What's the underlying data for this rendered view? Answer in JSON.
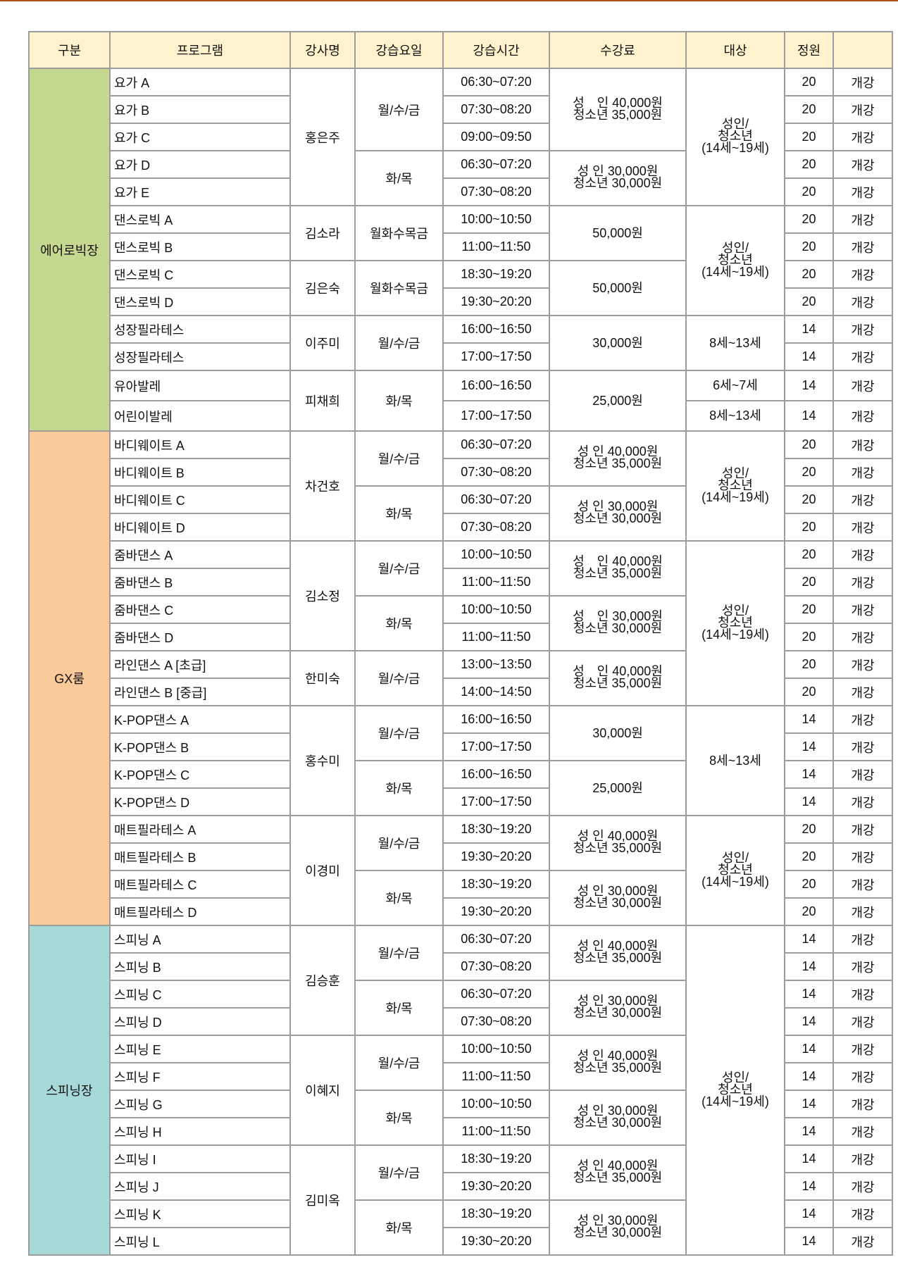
{
  "colors": {
    "header": "#fff2cc",
    "aerobic": "#c4d88f",
    "gx": "#fbca9a",
    "spinning": "#a6d9d8"
  },
  "headers": [
    "구분",
    "프로그램",
    "강사명",
    "강습요일",
    "강습시간",
    "수강료",
    "대상",
    "정원",
    ""
  ],
  "rows": [
    {
      "program": "요가 A",
      "time": "06:30~07:20",
      "capacity": "20",
      "status": "개강"
    },
    {
      "program": "요가 B",
      "time": "07:30~08:20",
      "capacity": "20",
      "status": "개강"
    },
    {
      "program": "요가 C",
      "time": "09:00~09:50",
      "capacity": "20",
      "status": "개강"
    },
    {
      "program": "요가 D",
      "time": "06:30~07:20",
      "capacity": "20",
      "status": "개강"
    },
    {
      "program": "요가 E",
      "time": "07:30~08:20",
      "capacity": "20",
      "status": "개강"
    },
    {
      "program": "댄스로빅 A",
      "time": "10:00~10:50",
      "capacity": "20",
      "status": "개강"
    },
    {
      "program": "댄스로빅 B",
      "time": "11:00~11:50",
      "capacity": "20",
      "status": "개강"
    },
    {
      "program": "댄스로빅 C",
      "time": "18:30~19:20",
      "capacity": "20",
      "status": "개강"
    },
    {
      "program": "댄스로빅 D",
      "time": "19:30~20:20",
      "capacity": "20",
      "status": "개강"
    },
    {
      "program": "성장필라테스",
      "time": "16:00~16:50",
      "capacity": "14",
      "status": "개강"
    },
    {
      "program": "성장필라테스",
      "time": "17:00~17:50",
      "capacity": "14",
      "status": "개강"
    },
    {
      "program": "유아발레",
      "time": "16:00~16:50",
      "capacity": "14",
      "status": "개강"
    },
    {
      "program": "어린이발레",
      "time": "17:00~17:50",
      "capacity": "14",
      "status": "개강"
    },
    {
      "program": "바디웨이트 A",
      "time": "06:30~07:20",
      "capacity": "20",
      "status": "개강"
    },
    {
      "program": "바디웨이트 B",
      "time": "07:30~08:20",
      "capacity": "20",
      "status": "개강"
    },
    {
      "program": "바디웨이트 C",
      "time": "06:30~07:20",
      "capacity": "20",
      "status": "개강"
    },
    {
      "program": "바디웨이트 D",
      "time": "07:30~08:20",
      "capacity": "20",
      "status": "개강"
    },
    {
      "program": "줌바댄스 A",
      "time": "10:00~10:50",
      "capacity": "20",
      "status": "개강"
    },
    {
      "program": "줌바댄스 B",
      "time": "11:00~11:50",
      "capacity": "20",
      "status": "개강"
    },
    {
      "program": "줌바댄스 C",
      "time": "10:00~10:50",
      "capacity": "20",
      "status": "개강"
    },
    {
      "program": "줌바댄스 D",
      "time": "11:00~11:50",
      "capacity": "20",
      "status": "개강"
    },
    {
      "program": "라인댄스 A [초급]",
      "time": "13:00~13:50",
      "capacity": "20",
      "status": "개강"
    },
    {
      "program": "라인댄스 B [중급]",
      "time": "14:00~14:50",
      "capacity": "20",
      "status": "개강"
    },
    {
      "program": "K-POP댄스 A",
      "time": "16:00~16:50",
      "capacity": "14",
      "status": "개강"
    },
    {
      "program": "K-POP댄스 B",
      "time": "17:00~17:50",
      "capacity": "14",
      "status": "개강"
    },
    {
      "program": "K-POP댄스 C",
      "time": "16:00~16:50",
      "capacity": "14",
      "status": "개강"
    },
    {
      "program": "K-POP댄스 D",
      "time": "17:00~17:50",
      "capacity": "14",
      "status": "개강"
    },
    {
      "program": "매트필라테스 A",
      "time": "18:30~19:20",
      "capacity": "20",
      "status": "개강"
    },
    {
      "program": "매트필라테스 B",
      "time": "19:30~20:20",
      "capacity": "20",
      "status": "개강"
    },
    {
      "program": "매트필라테스 C",
      "time": "18:30~19:20",
      "capacity": "20",
      "status": "개강"
    },
    {
      "program": "매트필라테스 D",
      "time": "19:30~20:20",
      "capacity": "20",
      "status": "개강"
    },
    {
      "program": "스피닝 A",
      "time": "06:30~07:20",
      "capacity": "14",
      "status": "개강"
    },
    {
      "program": "스피닝 B",
      "time": "07:30~08:20",
      "capacity": "14",
      "status": "개강"
    },
    {
      "program": "스피닝 C",
      "time": "06:30~07:20",
      "capacity": "14",
      "status": "개강"
    },
    {
      "program": "스피닝 D",
      "time": "07:30~08:20",
      "capacity": "14",
      "status": "개강"
    },
    {
      "program": "스피닝 E",
      "time": "10:00~10:50",
      "capacity": "14",
      "status": "개강"
    },
    {
      "program": "스피닝 F",
      "time": "11:00~11:50",
      "capacity": "14",
      "status": "개강"
    },
    {
      "program": "스피닝 G",
      "time": "10:00~10:50",
      "capacity": "14",
      "status": "개강"
    },
    {
      "program": "스피닝 H",
      "time": "11:00~11:50",
      "capacity": "14",
      "status": "개강"
    },
    {
      "program": "스피닝 I",
      "time": "18:30~19:20",
      "capacity": "14",
      "status": "개강"
    },
    {
      "program": "스피닝 J",
      "time": "19:30~20:20",
      "capacity": "14",
      "status": "개강"
    },
    {
      "program": "스피닝 K",
      "time": "18:30~19:20",
      "capacity": "14",
      "status": "개강"
    },
    {
      "program": "스피닝 L",
      "time": "19:30~20:20",
      "capacity": "14",
      "status": "개강"
    }
  ],
  "category": [
    {
      "text": "에어로빅장",
      "span": 13,
      "color": "aerobic"
    },
    {
      "text": "GX룸",
      "span": 18,
      "color": "gx"
    },
    {
      "text": "스피닝장",
      "span": 12,
      "color": "spinning"
    }
  ],
  "instructor": [
    {
      "text": "홍은주",
      "span": 5
    },
    {
      "text": "김소라",
      "span": 2
    },
    {
      "text": "김은숙",
      "span": 2
    },
    {
      "text": "이주미",
      "span": 2
    },
    {
      "text": "피채희",
      "span": 2
    },
    {
      "text": "차건호",
      "span": 4
    },
    {
      "text": "김소정",
      "span": 4
    },
    {
      "text": "한미숙",
      "span": 2
    },
    {
      "text": "홍수미",
      "span": 4
    },
    {
      "text": "이경미",
      "span": 4
    },
    {
      "text": "김승훈",
      "span": 4
    },
    {
      "text": "이혜지",
      "span": 4
    },
    {
      "text": "김미옥",
      "span": 4
    }
  ],
  "days": [
    {
      "text": "월/수/금",
      "span": 3
    },
    {
      "text": "화/목",
      "span": 2
    },
    {
      "text": "월화수목금",
      "span": 2
    },
    {
      "text": "월화수목금",
      "span": 2
    },
    {
      "text": "월/수/금",
      "span": 2
    },
    {
      "text": "화/목",
      "span": 2
    },
    {
      "text": "월/수/금",
      "span": 2
    },
    {
      "text": "화/목",
      "span": 2
    },
    {
      "text": "월/수/금",
      "span": 2
    },
    {
      "text": "화/목",
      "span": 2
    },
    {
      "text": "월/수/금",
      "span": 2
    },
    {
      "text": "월/수/금",
      "span": 2
    },
    {
      "text": "화/목",
      "span": 2
    },
    {
      "text": "월/수/금",
      "span": 2
    },
    {
      "text": "화/목",
      "span": 2
    },
    {
      "text": "월/수/금",
      "span": 2
    },
    {
      "text": "화/목",
      "span": 2
    },
    {
      "text": "월/수/금",
      "span": 2
    },
    {
      "text": "화/목",
      "span": 2
    },
    {
      "text": "월/수/금",
      "span": 2
    },
    {
      "text": "화/목",
      "span": 2
    }
  ],
  "fee": [
    {
      "lines": [
        "성　인 40,000원",
        "청소년 35,000원"
      ],
      "span": 3
    },
    {
      "lines": [
        "성 인 30,000원",
        "청소년 30,000원"
      ],
      "span": 2
    },
    {
      "lines": [
        "50,000원"
      ],
      "span": 2
    },
    {
      "lines": [
        "50,000원"
      ],
      "span": 2
    },
    {
      "lines": [
        "30,000원"
      ],
      "span": 2
    },
    {
      "lines": [
        "25,000원"
      ],
      "span": 2
    },
    {
      "lines": [
        "성 인 40,000원",
        "청소년 35,000원"
      ],
      "span": 2
    },
    {
      "lines": [
        "성 인 30,000원",
        "청소년 30,000원"
      ],
      "span": 2
    },
    {
      "lines": [
        "성　인 40,000원",
        "청소년 35,000원"
      ],
      "span": 2
    },
    {
      "lines": [
        "성　인 30,000원",
        "청소년 30,000원"
      ],
      "span": 2
    },
    {
      "lines": [
        "성　인 40,000원",
        "청소년 35,000원"
      ],
      "span": 2
    },
    {
      "lines": [
        "30,000원"
      ],
      "span": 2
    },
    {
      "lines": [
        "25,000원"
      ],
      "span": 2
    },
    {
      "lines": [
        "성 인 40,000원",
        "청소년 35,000원"
      ],
      "span": 2
    },
    {
      "lines": [
        "성 인 30,000원",
        "청소년 30,000원"
      ],
      "span": 2
    },
    {
      "lines": [
        "성 인 40,000원",
        "청소년 35,000원"
      ],
      "span": 2
    },
    {
      "lines": [
        "성 인 30,000원",
        "청소년 30,000원"
      ],
      "span": 2
    },
    {
      "lines": [
        "성 인 40,000원",
        "청소년 35,000원"
      ],
      "span": 2
    },
    {
      "lines": [
        "성 인 30,000원",
        "청소년 30,000원"
      ],
      "span": 2
    },
    {
      "lines": [
        "성 인 40,000원",
        "청소년 35,000원"
      ],
      "span": 2
    },
    {
      "lines": [
        "성 인 30,000원",
        "청소년 30,000원"
      ],
      "span": 2
    }
  ],
  "target": [
    {
      "lines": [
        "성인/",
        "청소년",
        "(14세~19세)"
      ],
      "span": 5
    },
    {
      "lines": [
        "성인/",
        "청소년",
        "(14세~19세)"
      ],
      "span": 4
    },
    {
      "lines": [
        "8세~13세"
      ],
      "span": 2
    },
    {
      "lines": [
        "6세~7세"
      ],
      "span": 1
    },
    {
      "lines": [
        "8세~13세"
      ],
      "span": 1
    },
    {
      "lines": [
        "성인/",
        "청소년",
        "(14세~19세)"
      ],
      "span": 4
    },
    {
      "lines": [
        "성인/",
        "청소년",
        "(14세~19세)"
      ],
      "span": 6
    },
    {
      "lines": [
        "8세~13세"
      ],
      "span": 4
    },
    {
      "lines": [
        "성인/",
        "청소년",
        "(14세~19세)"
      ],
      "span": 4
    },
    {
      "lines": [
        "성인/",
        "청소년",
        "(14세~19세)"
      ],
      "span": 12
    }
  ]
}
